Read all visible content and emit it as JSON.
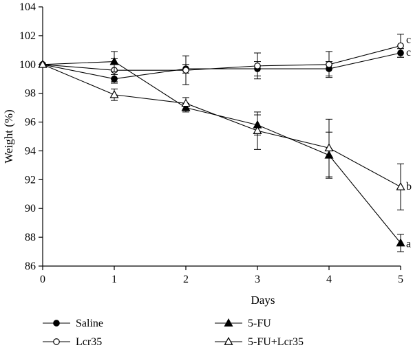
{
  "chart_data": {
    "type": "line",
    "xlabel": "Days",
    "ylabel": "Weight (%)",
    "x": [
      0,
      1,
      2,
      3,
      4,
      5
    ],
    "xlim": [
      0,
      5
    ],
    "ylim": [
      86,
      104
    ],
    "yticks": [
      86,
      88,
      90,
      92,
      94,
      96,
      98,
      100,
      102,
      104
    ],
    "xticks": [
      0,
      1,
      2,
      3,
      4,
      5
    ],
    "grid": false,
    "legend_position": "bottom",
    "series": [
      {
        "name": "Saline",
        "marker": "filled-circle",
        "values": [
          100,
          99.0,
          99.7,
          99.7,
          99.7,
          100.8
        ],
        "errors": [
          0,
          0.3,
          0.3,
          0.5,
          0.5,
          0.3
        ],
        "label": "c"
      },
      {
        "name": "Lcr35",
        "marker": "open-circle",
        "values": [
          100,
          99.6,
          99.6,
          99.9,
          100.0,
          101.3
        ],
        "errors": [
          0,
          0.8,
          1.0,
          0.9,
          0.9,
          0.8
        ],
        "label": "c"
      },
      {
        "name": "5-FU",
        "marker": "filled-triangle",
        "values": [
          100,
          100.2,
          97.0,
          95.8,
          93.7,
          87.6
        ],
        "errors": [
          0,
          0.7,
          0.3,
          0.7,
          1.6,
          0.6
        ],
        "label": "a"
      },
      {
        "name": "5-FU+Lcr35",
        "marker": "open-triangle",
        "values": [
          100,
          97.9,
          97.3,
          95.4,
          94.2,
          91.5
        ],
        "errors": [
          0,
          0.4,
          0.4,
          1.3,
          2.0,
          1.6
        ],
        "label": "b"
      }
    ]
  }
}
